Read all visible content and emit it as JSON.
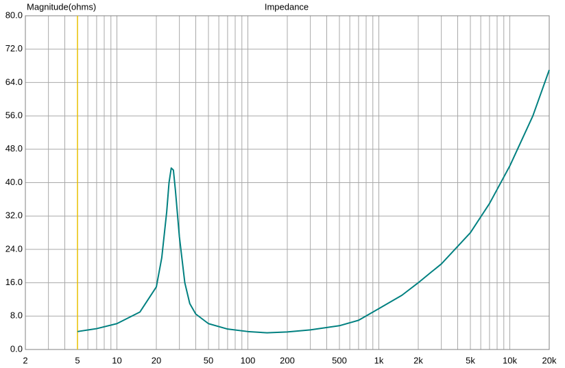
{
  "chart_data": {
    "type": "line",
    "title": "Impedance",
    "y_label": "Magnitude(ohms)",
    "log_x": true,
    "grid": true,
    "x": [
      5,
      7,
      10,
      15,
      20,
      22,
      24,
      25,
      26,
      27,
      28,
      30,
      33,
      36,
      40,
      50,
      70,
      100,
      140,
      200,
      300,
      500,
      700,
      1000,
      1500,
      2000,
      2500,
      3000,
      5000,
      7000,
      10000,
      15000,
      20000
    ],
    "series": [
      {
        "name": "Impedance",
        "color": "#008080",
        "values": [
          4.3,
          5.0,
          6.2,
          9,
          15,
          22,
          33,
          40,
          43.5,
          43,
          38,
          27,
          16,
          11,
          8.5,
          6.2,
          4.9,
          4.3,
          4.0,
          4.2,
          4.7,
          5.7,
          7,
          9.8,
          13,
          16,
          18.5,
          20.5,
          28,
          35,
          44,
          56,
          67
        ]
      }
    ],
    "xlim": [
      2,
      20000
    ],
    "xticks": [
      2,
      5,
      10,
      20,
      50,
      100,
      200,
      500,
      {
        "value": 1000,
        "label": "1k"
      },
      {
        "value": 2000,
        "label": "2k"
      },
      {
        "value": 5000,
        "label": "5k"
      },
      {
        "value": 10000,
        "label": "10k"
      },
      {
        "value": 20000,
        "label": "20k"
      }
    ],
    "x_minor_ticks": [
      3,
      4,
      6,
      7,
      8,
      9,
      30,
      40,
      60,
      70,
      80,
      90,
      300,
      400,
      600,
      700,
      800,
      900,
      3000,
      4000,
      6000,
      7000,
      8000,
      9000
    ],
    "ylim": [
      0,
      80
    ],
    "yticks": [
      {
        "value": 0,
        "label": "0.0"
      },
      {
        "value": 8,
        "label": "8.0"
      },
      {
        "value": 16,
        "label": "16.0"
      },
      {
        "value": 24,
        "label": "24.0"
      },
      {
        "value": 32,
        "label": "32.0"
      },
      {
        "value": 40,
        "label": "40.0"
      },
      {
        "value": 48,
        "label": "48.0"
      },
      {
        "value": 56,
        "label": "56.0"
      },
      {
        "value": 64,
        "label": "64.0"
      },
      {
        "value": 72,
        "label": "72.0"
      },
      {
        "value": 80,
        "label": "80.0"
      }
    ],
    "cursor_x": 5,
    "cursor_color": "#e8c000"
  }
}
